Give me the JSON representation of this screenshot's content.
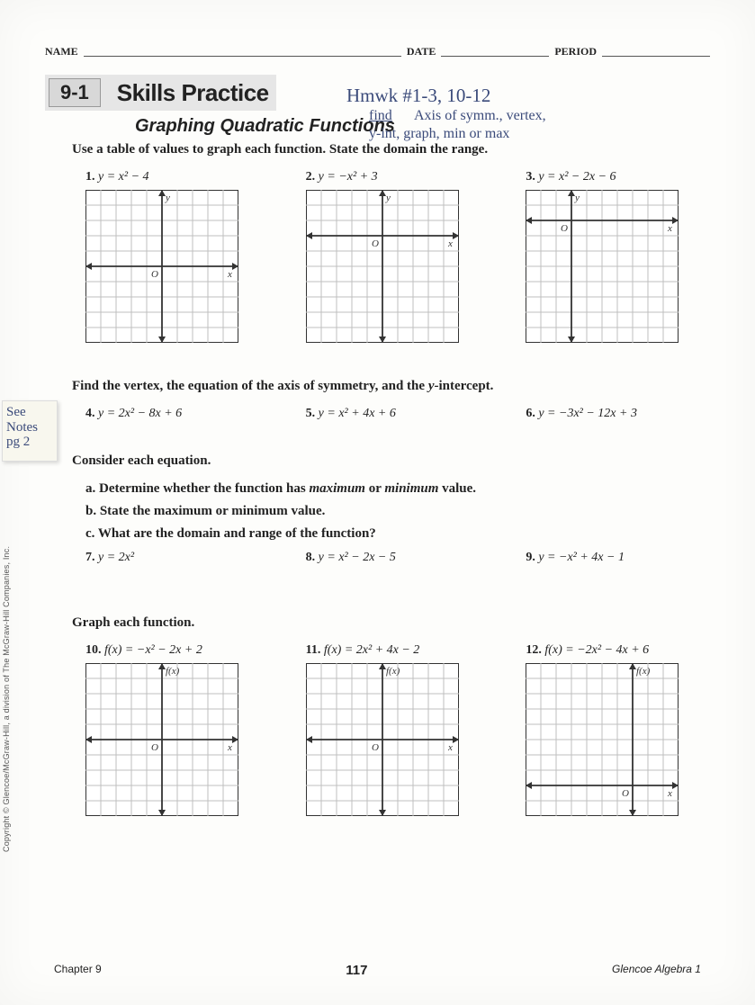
{
  "header": {
    "name": "NAME",
    "date": "DATE",
    "period": "PERIOD"
  },
  "lesson": {
    "number": "9-1",
    "title": "Skills Practice",
    "subtitle": "Graphing Quadratic Functions"
  },
  "handwriting": {
    "line1": "Hmwk #1-3, 10-12",
    "line2": "find Axis of symm., vertex,",
    "line3": "y-int, graph, min or max",
    "sticky": "See\nNotes\npg 2"
  },
  "section1": {
    "instr": "Use a table of values to graph each function. State the domain the range.",
    "problems": [
      {
        "n": "1.",
        "eq": "y = x² − 4"
      },
      {
        "n": "2.",
        "eq": "y = −x² + 3"
      },
      {
        "n": "3.",
        "eq": "y = x² − 2x − 6"
      }
    ]
  },
  "section2": {
    "instr": "Find the vertex, the equation of the axis of symmetry, and the y-intercept.",
    "problems": [
      {
        "n": "4.",
        "eq": "y = 2x² − 8x + 6"
      },
      {
        "n": "5.",
        "eq": "y = x² + 4x + 6"
      },
      {
        "n": "6.",
        "eq": "y = −3x² − 12x + 3"
      }
    ]
  },
  "section3": {
    "instr": "Consider each equation.",
    "parts": [
      "a. Determine whether the function has maximum or minimum value.",
      "b. State the maximum or minimum value.",
      "c. What are the domain and range of the function?"
    ],
    "problems": [
      {
        "n": "7.",
        "eq": "y = 2x²"
      },
      {
        "n": "8.",
        "eq": "y = x² − 2x − 5"
      },
      {
        "n": "9.",
        "eq": "y = −x² + 4x − 1"
      }
    ]
  },
  "section4": {
    "instr": "Graph each function.",
    "problems": [
      {
        "n": "10.",
        "eq": "f(x) = −x² − 2x + 2"
      },
      {
        "n": "11.",
        "eq": "f(x) = 2x² + 4x − 2"
      },
      {
        "n": "12.",
        "eq": "f(x) = −2x² − 4x + 6"
      }
    ]
  },
  "grid": {
    "size": 170,
    "cells": 10,
    "border": "#333333",
    "line": "#bfbfbf",
    "axis": "#333333",
    "bg": "#ffffff",
    "variants": [
      {
        "ox": 5,
        "oy": 5,
        "ylab": "y",
        "xlab": "x"
      },
      {
        "ox": 5,
        "oy": 3,
        "ylab": "y",
        "xlab": "x"
      },
      {
        "ox": 3,
        "oy": 2,
        "ylab": "y",
        "xlab": "x"
      },
      {
        "ox": 5,
        "oy": 5,
        "ylab": "f(x)",
        "xlab": "x"
      },
      {
        "ox": 5,
        "oy": 5,
        "ylab": "f(x)",
        "xlab": "x"
      },
      {
        "ox": 7,
        "oy": 8,
        "ylab": "f(x)",
        "xlab": "x"
      }
    ]
  },
  "copyright": "Copyright © Glencoe/McGraw-Hill, a division of The McGraw-Hill Companies, Inc.",
  "footer": {
    "chapter": "Chapter 9",
    "page": "117",
    "book": "Glencoe Algebra 1"
  }
}
